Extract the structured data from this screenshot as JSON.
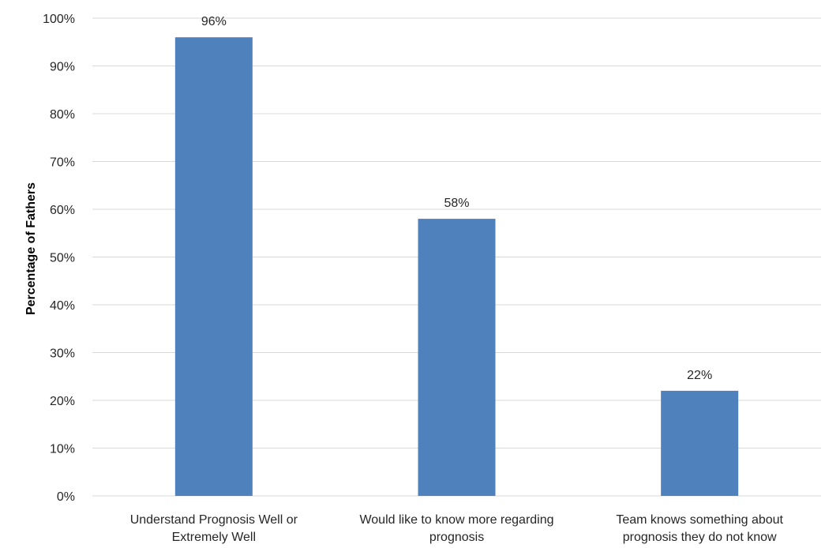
{
  "chart_data": {
    "type": "bar",
    "title": "",
    "xlabel": "",
    "ylabel": "Percentage of Fathers",
    "categories": [
      [
        "Understand Prognosis Well or",
        "Extremely Well"
      ],
      [
        "Would like to know more regarding",
        "prognosis"
      ],
      [
        "Team knows something about",
        "prognosis they do not know"
      ]
    ],
    "values": [
      96,
      58,
      22
    ],
    "data_labels": [
      "96%",
      "58%",
      "22%"
    ],
    "ylim": [
      0,
      100
    ],
    "yticks": [
      0,
      10,
      20,
      30,
      40,
      50,
      60,
      70,
      80,
      90,
      100
    ],
    "ytick_labels": [
      "0%",
      "10%",
      "20%",
      "30%",
      "40%",
      "50%",
      "60%",
      "70%",
      "80%",
      "90%",
      "100%"
    ],
    "grid": true,
    "legend": "none",
    "bar_color": "#4f81bd",
    "grid_color": "#d9d9d9"
  }
}
